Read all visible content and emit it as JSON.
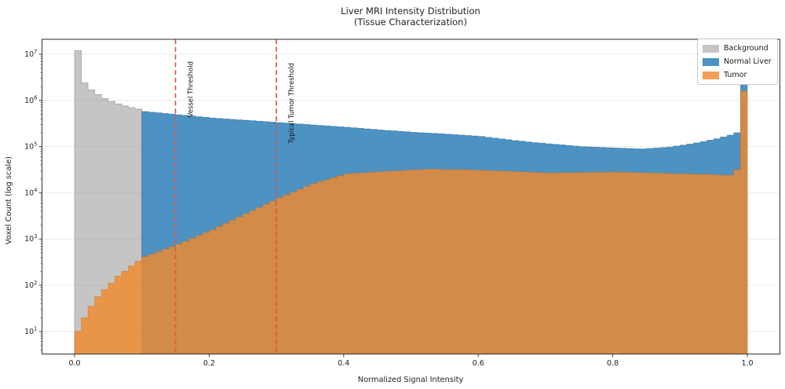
{
  "title": {
    "line1": "Liver MRI Intensity Distribution",
    "line2": "(Tissue Characterization)"
  },
  "axes": {
    "xlabel": "Normalized Signal Intensity",
    "ylabel": "Voxel Count (log scale)",
    "x_ticks": [
      {
        "label": "0.0",
        "value": 0.0
      },
      {
        "label": "0.2",
        "value": 0.2
      },
      {
        "label": "0.4",
        "value": 0.4
      },
      {
        "label": "0.6",
        "value": 0.6
      },
      {
        "label": "0.8",
        "value": 0.8
      },
      {
        "label": "1.0",
        "value": 1.0
      }
    ],
    "y_tick_exponents": [
      1,
      2,
      3,
      4,
      5,
      6,
      7
    ],
    "y_scale": "log",
    "grid": "horizontal-major"
  },
  "legend": {
    "position": "upper-right",
    "items": [
      {
        "label": "Background"
      },
      {
        "label": "Normal Liver"
      },
      {
        "label": "Tumor"
      }
    ]
  },
  "annotations": [
    {
      "label": "Vessel Threshold",
      "x": 0.15,
      "style": "dashed-red-vertical"
    },
    {
      "label": "Typical Tumor Threshold",
      "x": 0.3,
      "style": "dashed-red-vertical"
    }
  ],
  "chart_data": {
    "type": "bar",
    "subtype": "overlapping-histogram-log-y",
    "bin_width": 0.01,
    "x_range": [
      0.0,
      1.0
    ],
    "ylim_shown": [
      3.5,
      21000000
    ],
    "threshold_color": "#e0564e",
    "series": [
      {
        "name": "Background",
        "bin_start": 0.0,
        "fill": "rgba(150,150,150,0.55)",
        "edge": "rgba(110,110,110,0.5)",
        "values": [
          12000000,
          2400000,
          1700000,
          1350000,
          1100000,
          950000,
          840000,
          760000,
          700000,
          650000
        ]
      },
      {
        "name": "Normal Liver",
        "bin_start": 0.1,
        "fill": "rgba(31,119,180,0.80)",
        "edge": "rgba(23,88,133,0.5)",
        "values": [
          575000,
          557000,
          539000,
          522000,
          506000,
          490000,
          474000,
          459000,
          445000,
          431000,
          417000,
          407000,
          398000,
          389000,
          380000,
          372000,
          363000,
          355000,
          347000,
          339000,
          331000,
          324000,
          316000,
          309000,
          302000,
          295000,
          288000,
          282000,
          275000,
          269000,
          263000,
          256000,
          249000,
          242000,
          236000,
          229000,
          224000,
          219000,
          214000,
          209000,
          204000,
          200000,
          197000,
          193000,
          190000,
          186000,
          182000,
          178000,
          174000,
          170000,
          166000,
          159000,
          153000,
          147000,
          141000,
          135000,
          131000,
          126000,
          122000,
          119000,
          115000,
          112000,
          109000,
          106000,
          103000,
          100000,
          98600,
          97300,
          95900,
          94600,
          93300,
          92300,
          91200,
          90200,
          89100,
          91200,
          93300,
          95500,
          97700,
          103000,
          108000,
          114000,
          120000,
          129000,
          138000,
          148000,
          162000,
          178000,
          200000,
          3000000
        ]
      },
      {
        "name": "Tumor",
        "bin_start": 0.0,
        "fill": "rgba(240,138,45,0.82)",
        "edge": "rgba(205,110,25,0.55)",
        "values": [
          10,
          20,
          35,
          56,
          80,
          112,
          158,
          200,
          263,
          331,
          417,
          472,
          534,
          605,
          686,
          776,
          896,
          1030,
          1190,
          1370,
          1580,
          1860,
          2190,
          2570,
          3020,
          3550,
          4150,
          4850,
          5670,
          6640,
          7800,
          8950,
          10300,
          11900,
          13700,
          15800,
          17500,
          19200,
          21200,
          23300,
          25700,
          26300,
          26900,
          27500,
          28200,
          28800,
          29300,
          29700,
          30200,
          30900,
          31600,
          31600,
          32400,
          32400,
          32400,
          31600,
          32100,
          31800,
          31500,
          31200,
          30900,
          30500,
          30100,
          29600,
          29200,
          28800,
          28400,
          28100,
          27700,
          27300,
          26900,
          27000,
          27200,
          27300,
          27400,
          27500,
          27700,
          27800,
          27900,
          28100,
          28200,
          27900,
          27700,
          27400,
          27200,
          26900,
          26700,
          26400,
          26200,
          25900,
          25700,
          25500,
          25200,
          25000,
          24800,
          24500,
          24000,
          24000,
          31600,
          1580000
        ]
      }
    ]
  }
}
